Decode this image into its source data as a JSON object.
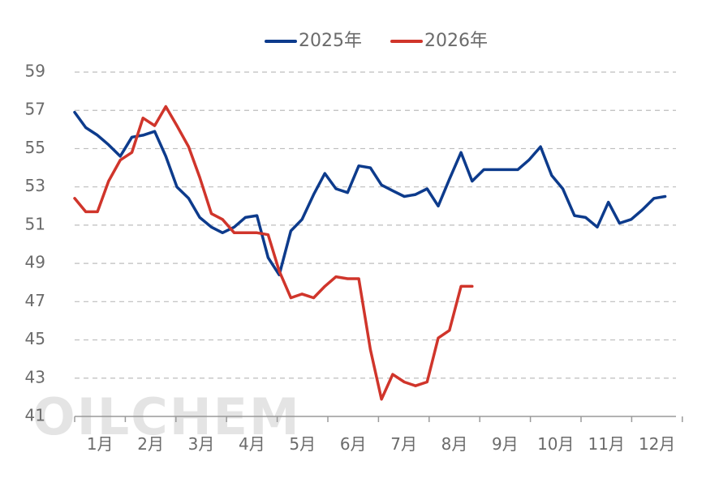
{
  "chart_data": {
    "type": "line",
    "title": "",
    "xlabel": "",
    "ylabel": "",
    "ylim": [
      41,
      59
    ],
    "yticks": [
      41,
      43,
      45,
      47,
      49,
      51,
      53,
      55,
      57,
      59
    ],
    "xlim": [
      0,
      12
    ],
    "month_labels": [
      "1月",
      "2月",
      "3月",
      "4月",
      "5月",
      "6月",
      "7月",
      "8月",
      "9月",
      "10月",
      "11月",
      "12月"
    ],
    "grid": "horizontal-dashed",
    "legend_position": "top-center",
    "watermark": "OILCHEM",
    "series": [
      {
        "name": "2025年",
        "color": "#0d3b8c",
        "x": [
          0.0,
          0.22,
          0.45,
          0.67,
          0.9,
          1.13,
          1.35,
          1.58,
          1.8,
          2.02,
          2.25,
          2.47,
          2.7,
          2.92,
          3.15,
          3.37,
          3.6,
          3.82,
          4.04,
          4.27,
          4.49,
          4.72,
          4.94,
          5.16,
          5.39,
          5.61,
          5.84,
          6.06,
          6.28,
          6.51,
          6.73,
          6.96,
          7.18,
          7.4,
          7.63,
          7.85,
          8.08,
          8.3,
          8.52,
          8.75,
          8.97,
          9.2,
          9.42,
          9.64,
          9.87,
          10.09,
          10.32,
          10.54,
          10.76,
          10.99,
          11.21,
          11.44,
          11.66
        ],
        "values": [
          56.9,
          56.1,
          55.7,
          55.2,
          54.6,
          55.6,
          55.7,
          55.9,
          54.6,
          53.0,
          52.4,
          51.4,
          50.9,
          50.6,
          50.9,
          51.4,
          51.5,
          49.3,
          48.4,
          50.7,
          51.3,
          52.6,
          53.7,
          52.9,
          52.7,
          54.1,
          54.0,
          53.1,
          52.8,
          52.5,
          52.6,
          52.9,
          52.0,
          53.4,
          54.8,
          53.3,
          53.9,
          53.9,
          53.9,
          53.9,
          54.4,
          55.1,
          53.6,
          52.9,
          51.5,
          51.4,
          50.9,
          52.2,
          51.1,
          51.3,
          51.8,
          52.4,
          52.5
        ]
      },
      {
        "name": "2026年",
        "color": "#d0352b",
        "x": [
          0.0,
          0.22,
          0.45,
          0.67,
          0.9,
          1.13,
          1.35,
          1.58,
          1.8,
          2.02,
          2.25,
          2.47,
          2.7,
          2.92,
          3.15,
          3.37,
          3.6,
          3.82,
          4.04,
          4.27,
          4.49,
          4.72,
          4.94,
          5.16,
          5.39,
          5.61,
          5.84,
          6.06,
          6.28,
          6.51,
          6.73,
          6.96,
          7.18,
          7.4,
          7.63,
          7.85
        ],
        "values": [
          52.4,
          51.7,
          51.7,
          53.3,
          54.4,
          54.8,
          56.6,
          56.2,
          57.2,
          56.2,
          55.1,
          53.5,
          51.6,
          51.3,
          50.6,
          50.6,
          50.6,
          50.5,
          48.6,
          47.2,
          47.4,
          47.2,
          47.8,
          48.3,
          48.2,
          48.2,
          44.5,
          41.9,
          43.2,
          42.8,
          42.6,
          42.8,
          45.1,
          45.5,
          47.8,
          47.8
        ]
      }
    ]
  }
}
